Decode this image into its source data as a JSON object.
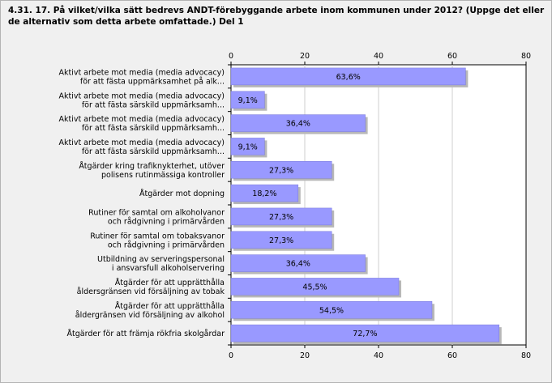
{
  "chart_data": {
    "type": "bar",
    "orientation": "horizontal",
    "title": "4.31. 17. På vilket/vilka sätt bedrevs ANDT-förebyggande arbete inom kommunen under 2012? (Uppge det eller de alternativ som detta arbete omfattade.) Del 1",
    "categories": [
      [
        "Aktivt arbete mot media (media advocacy)",
        "för att fästa uppmärksamhet på alk..."
      ],
      [
        "Aktivt arbete mot media (media advocacy)",
        "för att fästa särskild uppmärksamh..."
      ],
      [
        "Aktivt arbete mot media (media advocacy)",
        "för att fästa särskild uppmärksamh..."
      ],
      [
        "Aktivt arbete mot media (media advocacy)",
        "för att fästa särskild uppmärksamh..."
      ],
      [
        "Åtgärder kring trafiknykterhet, utöver",
        "polisens rutinmässiga kontroller"
      ],
      [
        "Åtgärder mot dopning"
      ],
      [
        "Rutiner för samtal om alkoholvanor",
        "och rådgivning i primärvården"
      ],
      [
        "Rutiner för samtal om tobaksvanor",
        "och rådgivning i primärvården"
      ],
      [
        "Utbildning av serveringspersonal",
        "i ansvarsfull alkoholservering"
      ],
      [
        "Åtgärder för att upprätthålla",
        "åldersgränsen vid försäljning av tobak"
      ],
      [
        "Åtgärder för att upprätthålla",
        "åldergränsen vid försäljning av alkohol"
      ],
      [
        "Åtgärder för att främja rökfria skolgårdar"
      ]
    ],
    "values": [
      63.6,
      9.1,
      36.4,
      9.1,
      27.3,
      18.2,
      27.3,
      27.3,
      36.4,
      45.5,
      54.5,
      72.7
    ],
    "value_labels": [
      "63,6%",
      "9,1%",
      "36,4%",
      "9,1%",
      "27,3%",
      "18,2%",
      "27,3%",
      "27,3%",
      "36,4%",
      "45,5%",
      "54,5%",
      "72,7%"
    ],
    "xlim": [
      0,
      80
    ],
    "xticks": [
      0,
      20,
      40,
      60,
      80
    ],
    "axis_position": "top-and-bottom",
    "grid": true,
    "bar_color": "#9999ff",
    "bar_shadow_color": "#b8b8b8",
    "plot_background": "#ffffff"
  }
}
